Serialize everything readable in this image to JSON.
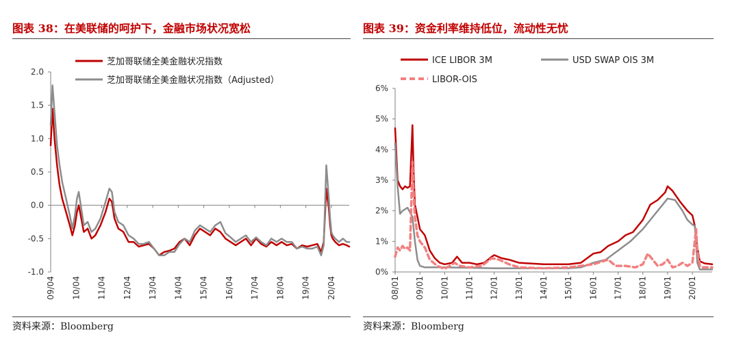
{
  "left": {
    "title": "图表 38：在美联储的呵护下，金融市场状况宽松",
    "source": "资料来源：Bloomberg",
    "chart_data": {
      "type": "line",
      "ylim": [
        -1.0,
        2.0
      ],
      "yticks": [
        2.0,
        1.5,
        1.0,
        0.5,
        0.0,
        -0.5,
        -1.0
      ],
      "ytick_labels": [
        "2.0",
        "1.5",
        "1.0",
        "0.5",
        "0.0",
        "-0.5",
        "-1.0"
      ],
      "xlim": [
        2009.25,
        2020.95
      ],
      "xticks": [
        2009.25,
        2010.25,
        2011.25,
        2012.25,
        2013.25,
        2014.25,
        2015.25,
        2016.25,
        2017.25,
        2018.25,
        2019.25,
        2020.25
      ],
      "xtick_labels": [
        "09/04",
        "10/04",
        "11/04",
        "12/04",
        "13/04",
        "14/04",
        "15/04",
        "16/04",
        "17/04",
        "18/04",
        "19/04",
        "20/04"
      ],
      "legend_position": "top",
      "series": [
        {
          "name": "芝加哥联储全美金融状况指数",
          "color": "#c00000",
          "x": [
            2009.25,
            2009.32,
            2009.4,
            2009.5,
            2009.6,
            2009.7,
            2009.85,
            2010.0,
            2010.1,
            2010.2,
            2010.28,
            2010.35,
            2010.45,
            2010.55,
            2010.7,
            2010.85,
            2011.0,
            2011.2,
            2011.4,
            2011.55,
            2011.65,
            2011.75,
            2011.9,
            2012.1,
            2012.3,
            2012.5,
            2012.7,
            2012.9,
            2013.1,
            2013.3,
            2013.5,
            2013.7,
            2013.9,
            2014.1,
            2014.3,
            2014.5,
            2014.7,
            2014.9,
            2015.1,
            2015.3,
            2015.5,
            2015.7,
            2015.9,
            2016.1,
            2016.3,
            2016.5,
            2016.7,
            2016.9,
            2017.1,
            2017.3,
            2017.5,
            2017.7,
            2017.9,
            2018.1,
            2018.3,
            2018.5,
            2018.7,
            2018.9,
            2019.1,
            2019.3,
            2019.5,
            2019.7,
            2019.85,
            2019.95,
            2020.05,
            2020.15,
            2020.2,
            2020.25,
            2020.3,
            2020.4,
            2020.55,
            2020.7,
            2020.85,
            2020.95
          ],
          "values": [
            0.9,
            1.45,
            1.0,
            0.6,
            0.3,
            0.1,
            -0.1,
            -0.3,
            -0.45,
            -0.3,
            -0.1,
            0.0,
            -0.2,
            -0.4,
            -0.35,
            -0.5,
            -0.45,
            -0.3,
            -0.1,
            0.1,
            0.05,
            -0.2,
            -0.35,
            -0.4,
            -0.55,
            -0.55,
            -0.62,
            -0.6,
            -0.58,
            -0.65,
            -0.75,
            -0.7,
            -0.68,
            -0.65,
            -0.55,
            -0.5,
            -0.6,
            -0.45,
            -0.35,
            -0.4,
            -0.45,
            -0.35,
            -0.4,
            -0.5,
            -0.55,
            -0.6,
            -0.55,
            -0.5,
            -0.6,
            -0.5,
            -0.58,
            -0.62,
            -0.55,
            -0.6,
            -0.55,
            -0.6,
            -0.58,
            -0.65,
            -0.6,
            -0.62,
            -0.6,
            -0.58,
            -0.7,
            -0.55,
            0.25,
            -0.05,
            -0.3,
            -0.45,
            -0.5,
            -0.55,
            -0.6,
            -0.58,
            -0.6,
            -0.62
          ]
        },
        {
          "name": "芝加哥联储全美金融状况指数（Adjusted）",
          "color": "#8c8c8c",
          "x": [
            2009.25,
            2009.32,
            2009.4,
            2009.5,
            2009.6,
            2009.7,
            2009.85,
            2010.0,
            2010.1,
            2010.2,
            2010.28,
            2010.35,
            2010.45,
            2010.55,
            2010.7,
            2010.85,
            2011.0,
            2011.2,
            2011.4,
            2011.55,
            2011.65,
            2011.75,
            2011.9,
            2012.1,
            2012.3,
            2012.5,
            2012.7,
            2012.9,
            2013.1,
            2013.3,
            2013.5,
            2013.7,
            2013.9,
            2014.1,
            2014.3,
            2014.5,
            2014.7,
            2014.9,
            2015.1,
            2015.3,
            2015.5,
            2015.7,
            2015.9,
            2016.1,
            2016.3,
            2016.5,
            2016.7,
            2016.9,
            2017.1,
            2017.3,
            2017.5,
            2017.7,
            2017.9,
            2018.1,
            2018.3,
            2018.5,
            2018.7,
            2018.9,
            2019.1,
            2019.3,
            2019.5,
            2019.7,
            2019.85,
            2019.95,
            2020.05,
            2020.15,
            2020.2,
            2020.25,
            2020.3,
            2020.4,
            2020.55,
            2020.7,
            2020.85,
            2020.95
          ],
          "values": [
            1.2,
            1.8,
            1.4,
            0.9,
            0.6,
            0.35,
            0.1,
            -0.15,
            -0.35,
            -0.15,
            0.1,
            0.2,
            -0.05,
            -0.3,
            -0.25,
            -0.4,
            -0.35,
            -0.2,
            0.05,
            0.25,
            0.2,
            -0.1,
            -0.25,
            -0.3,
            -0.45,
            -0.5,
            -0.58,
            -0.58,
            -0.55,
            -0.65,
            -0.75,
            -0.75,
            -0.7,
            -0.7,
            -0.58,
            -0.5,
            -0.55,
            -0.38,
            -0.3,
            -0.35,
            -0.4,
            -0.3,
            -0.25,
            -0.42,
            -0.48,
            -0.55,
            -0.5,
            -0.45,
            -0.55,
            -0.48,
            -0.55,
            -0.6,
            -0.5,
            -0.55,
            -0.5,
            -0.55,
            -0.55,
            -0.65,
            -0.62,
            -0.65,
            -0.65,
            -0.62,
            -0.75,
            -0.6,
            0.6,
            0.1,
            -0.2,
            -0.4,
            -0.45,
            -0.5,
            -0.55,
            -0.5,
            -0.55,
            -0.55
          ]
        }
      ]
    }
  },
  "right": {
    "title": "图表 39：资金利率维持低位，流动性无忧",
    "source": "资料来源：Bloomberg",
    "chart_data": {
      "type": "line",
      "ylim": [
        0,
        6
      ],
      "yticks": [
        6,
        5,
        4,
        3,
        2,
        1,
        0
      ],
      "ytick_labels": [
        "6%",
        "5%",
        "4%",
        "3%",
        "2%",
        "1%",
        "0%"
      ],
      "xlim": [
        2008.0,
        2020.8
      ],
      "xticks": [
        2008.0,
        2009.0,
        2010.0,
        2011.0,
        2012.0,
        2013.0,
        2014.0,
        2015.0,
        2016.0,
        2017.0,
        2018.0,
        2019.0,
        2020.0
      ],
      "xtick_labels": [
        "08/01",
        "09/01",
        "10/01",
        "11/01",
        "12/01",
        "13/01",
        "14/01",
        "15/01",
        "16/01",
        "17/01",
        "18/01",
        "19/01",
        "20/01"
      ],
      "legend_position": "top",
      "series": [
        {
          "name": "ICE LIBOR 3M",
          "color": "#c00000",
          "dash": "solid",
          "x": [
            2008.0,
            2008.1,
            2008.2,
            2008.3,
            2008.4,
            2008.5,
            2008.6,
            2008.7,
            2008.75,
            2008.8,
            2008.9,
            2009.0,
            2009.2,
            2009.4,
            2009.6,
            2009.8,
            2010.0,
            2010.3,
            2010.5,
            2010.7,
            2011.0,
            2011.3,
            2011.6,
            2011.9,
            2012.0,
            2012.3,
            2012.6,
            2013.0,
            2014.0,
            2015.0,
            2015.5,
            2016.0,
            2016.3,
            2016.6,
            2017.0,
            2017.3,
            2017.6,
            2018.0,
            2018.3,
            2018.6,
            2018.9,
            2019.0,
            2019.2,
            2019.5,
            2019.8,
            2020.0,
            2020.1,
            2020.2,
            2020.3,
            2020.5,
            2020.8
          ],
          "values": [
            4.7,
            3.0,
            2.8,
            2.7,
            2.8,
            2.75,
            2.8,
            4.8,
            3.2,
            2.2,
            1.8,
            1.4,
            1.2,
            0.7,
            0.45,
            0.3,
            0.25,
            0.3,
            0.5,
            0.3,
            0.3,
            0.25,
            0.3,
            0.5,
            0.55,
            0.45,
            0.4,
            0.3,
            0.25,
            0.25,
            0.3,
            0.6,
            0.65,
            0.85,
            1.0,
            1.2,
            1.3,
            1.7,
            2.2,
            2.35,
            2.6,
            2.8,
            2.65,
            2.3,
            2.0,
            1.85,
            1.5,
            0.8,
            0.35,
            0.28,
            0.25
          ]
        },
        {
          "name": "USD SWAP OIS 3M",
          "color": "#8c8c8c",
          "dash": "solid",
          "x": [
            2008.0,
            2008.1,
            2008.2,
            2008.3,
            2008.5,
            2008.7,
            2008.8,
            2008.9,
            2009.0,
            2009.2,
            2010.0,
            2012.0,
            2015.0,
            2015.5,
            2016.0,
            2016.5,
            2017.0,
            2017.5,
            2018.0,
            2018.5,
            2018.9,
            2019.0,
            2019.3,
            2019.6,
            2019.8,
            2020.0,
            2020.1,
            2020.2,
            2020.3,
            2020.8
          ],
          "values": [
            4.2,
            2.8,
            1.9,
            2.0,
            2.1,
            1.8,
            1.0,
            0.4,
            0.2,
            0.15,
            0.15,
            0.12,
            0.12,
            0.15,
            0.3,
            0.4,
            0.7,
            1.0,
            1.4,
            1.9,
            2.3,
            2.4,
            2.35,
            2.0,
            1.7,
            1.55,
            1.5,
            0.3,
            0.08,
            0.08
          ]
        },
        {
          "name": "LIBOR-OIS",
          "color": "#f28080",
          "dash": "dashed",
          "x": [
            2008.0,
            2008.1,
            2008.2,
            2008.3,
            2008.4,
            2008.5,
            2008.6,
            2008.7,
            2008.75,
            2008.8,
            2008.9,
            2009.0,
            2009.2,
            2009.4,
            2009.7,
            2010.0,
            2010.4,
            2010.6,
            2011.0,
            2011.5,
            2011.9,
            2012.2,
            2012.6,
            2013.0,
            2014.0,
            2015.0,
            2016.0,
            2016.6,
            2016.9,
            2017.3,
            2017.7,
            2018.0,
            2018.2,
            2018.4,
            2018.6,
            2018.8,
            2019.0,
            2019.2,
            2019.4,
            2019.6,
            2019.8,
            2020.0,
            2020.15,
            2020.2,
            2020.3,
            2020.4,
            2020.6,
            2020.8
          ],
          "values": [
            0.5,
            0.8,
            0.7,
            0.85,
            0.75,
            0.8,
            0.7,
            3.6,
            2.5,
            1.8,
            1.2,
            1.0,
            0.8,
            0.4,
            0.2,
            0.1,
            0.3,
            0.2,
            0.15,
            0.2,
            0.45,
            0.4,
            0.25,
            0.15,
            0.12,
            0.15,
            0.25,
            0.4,
            0.2,
            0.2,
            0.15,
            0.25,
            0.6,
            0.4,
            0.2,
            0.25,
            0.4,
            0.15,
            0.2,
            0.3,
            0.2,
            0.3,
            1.4,
            0.7,
            0.2,
            0.15,
            0.15,
            0.15
          ]
        }
      ]
    }
  }
}
